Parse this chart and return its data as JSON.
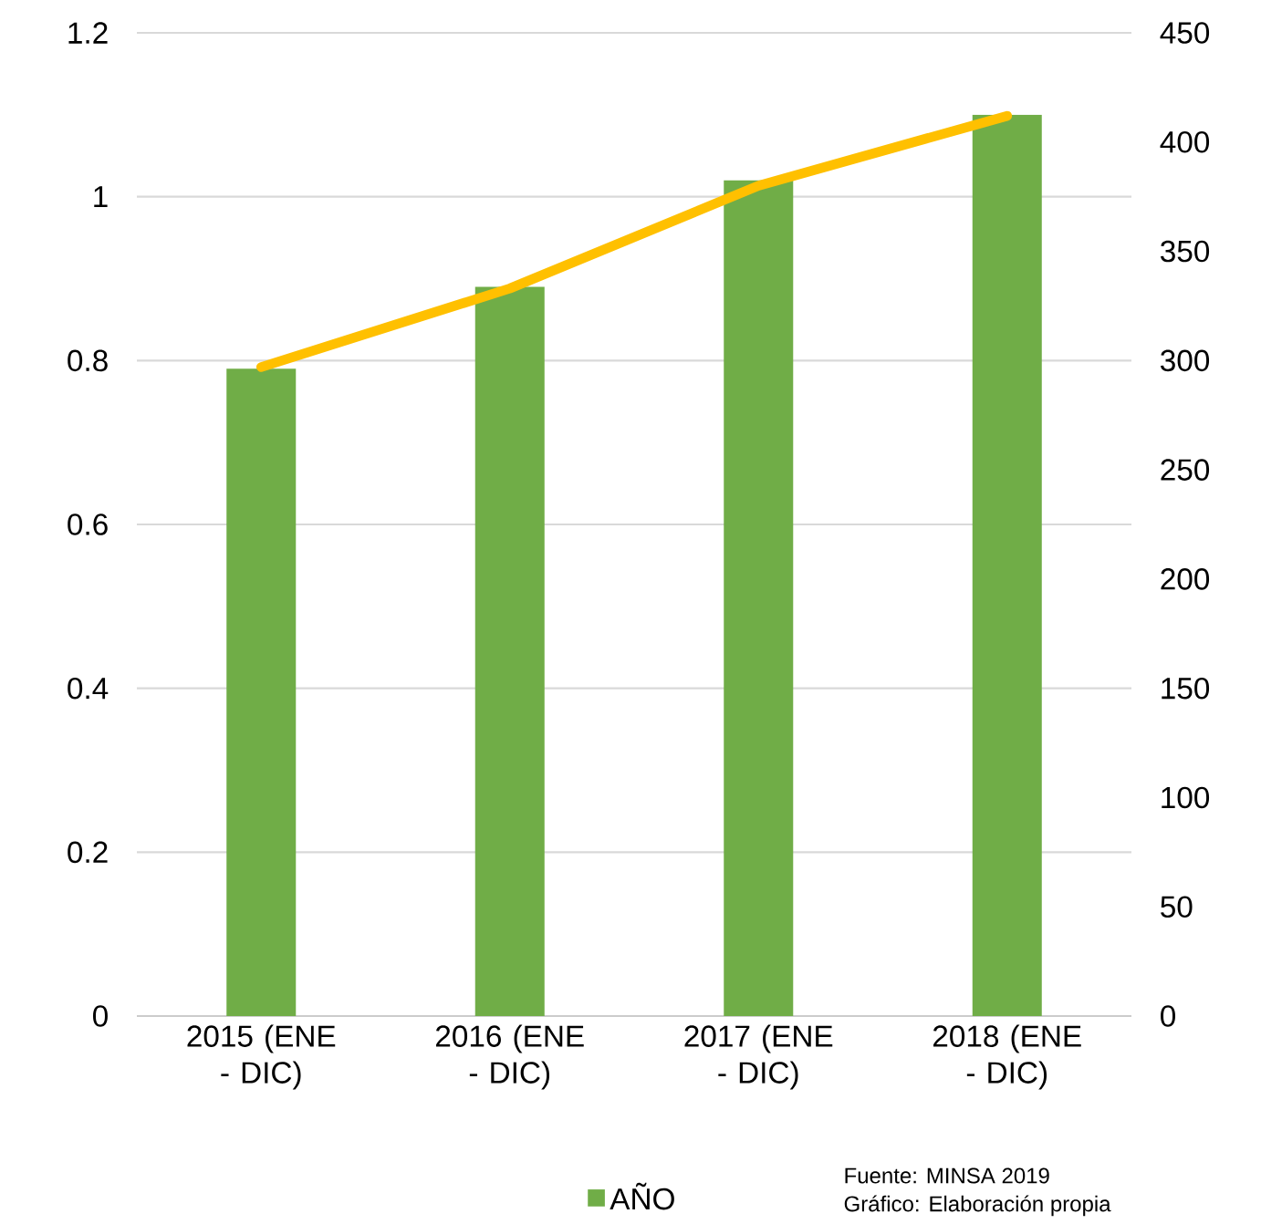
{
  "chart_data": {
    "type": "bar",
    "categories": [
      "2015 (ENE - DIC)",
      "2016 (ENE - DIC)",
      "2017 (ENE - DIC)",
      "2018 (ENE - DIC)"
    ],
    "series": [
      {
        "name": "AÑO",
        "color": "#70ad47",
        "values": [
          0.79,
          0.89,
          1.02,
          1.1
        ]
      },
      {
        "type": "line",
        "axis": "y2",
        "color": "#ffc000",
        "values": [
          297,
          333,
          380,
          412
        ]
      }
    ],
    "ylim": [
      0,
      1.2
    ],
    "yticks": [
      0,
      0.2,
      0.4,
      0.6,
      0.8,
      1,
      1.2
    ],
    "y2lim": [
      0,
      450
    ],
    "y2ticks": [
      0,
      50,
      100,
      150,
      200,
      250,
      300,
      350,
      400,
      450
    ],
    "grid": "y",
    "legend": "bottom",
    "annotations": [
      "Fuente: MINSA 2019",
      "Gráfico: Elaboración propia"
    ]
  }
}
